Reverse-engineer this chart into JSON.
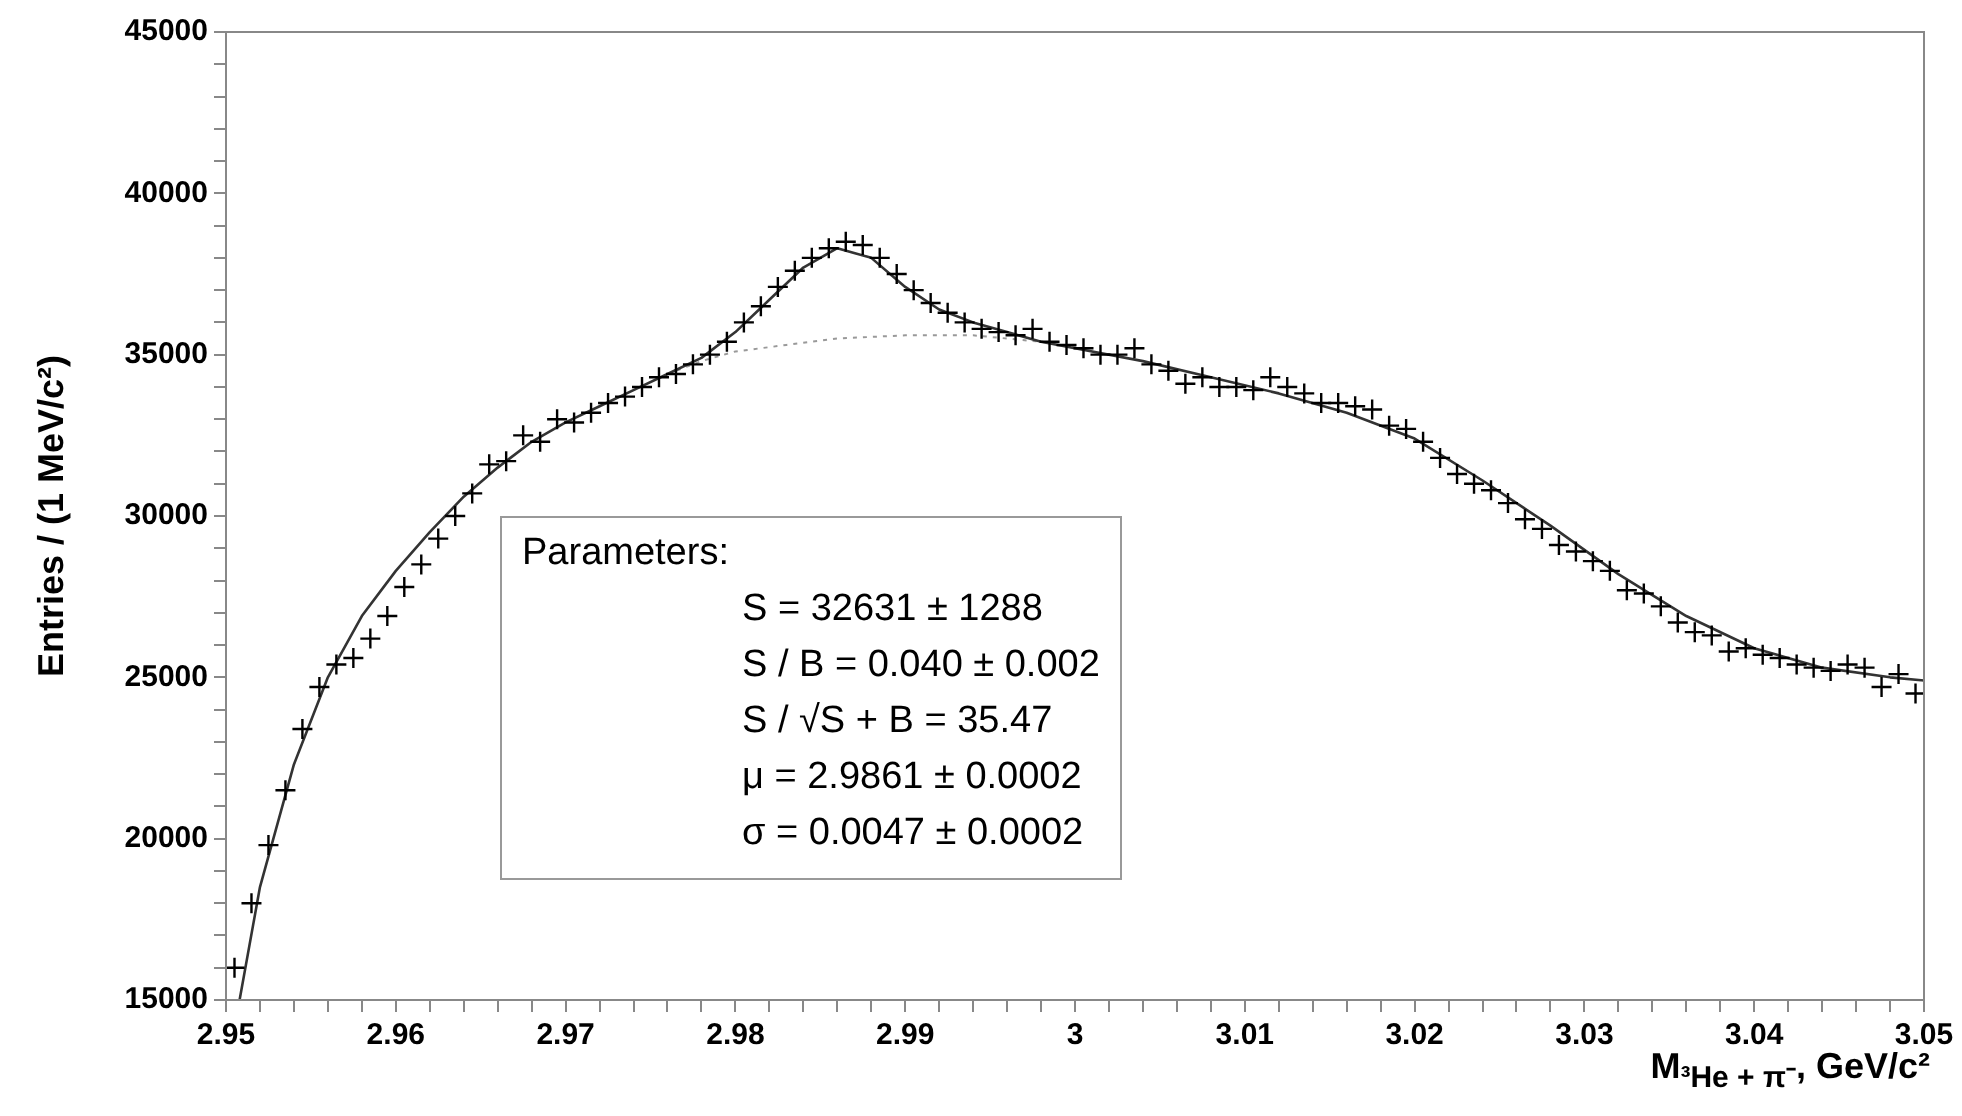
{
  "chart_data": {
    "type": "scatter",
    "xlabel": "M$_{³He + π⁻}$, GeV/c²",
    "ylabel": "Entries / (1 MeV/c²)",
    "xlim": [
      2.95,
      3.05
    ],
    "ylim": [
      15000,
      45000
    ],
    "xticks": [
      2.95,
      {
        "value": 2.952,
        "label": null
      },
      {
        "value": 2.954,
        "label": null
      },
      {
        "value": 2.956,
        "label": null
      },
      {
        "value": 2.958,
        "label": null
      },
      2.96,
      {
        "value": 2.962,
        "label": null
      },
      {
        "value": 2.964,
        "label": null
      },
      {
        "value": 2.966,
        "label": null
      },
      {
        "value": 2.968,
        "label": null
      },
      2.97,
      {
        "value": 2.972,
        "label": null
      },
      {
        "value": 2.974,
        "label": null
      },
      {
        "value": 2.976,
        "label": null
      },
      {
        "value": 2.978,
        "label": null
      },
      2.98,
      {
        "value": 2.982,
        "label": null
      },
      {
        "value": 2.984,
        "label": null
      },
      {
        "value": 2.986,
        "label": null
      },
      {
        "value": 2.988,
        "label": null
      },
      2.99,
      {
        "value": 2.992,
        "label": null
      },
      {
        "value": 2.994,
        "label": null
      },
      {
        "value": 2.996,
        "label": null
      },
      {
        "value": 2.998,
        "label": null
      },
      3,
      {
        "value": 3.002,
        "label": null
      },
      {
        "value": 3.004,
        "label": null
      },
      {
        "value": 3.006,
        "label": null
      },
      {
        "value": 3.008,
        "label": null
      },
      3.01,
      {
        "value": 3.012,
        "label": null
      },
      {
        "value": 3.014,
        "label": null
      },
      {
        "value": 3.016,
        "label": null
      },
      {
        "value": 3.018,
        "label": null
      },
      3.02,
      {
        "value": 3.022,
        "label": null
      },
      {
        "value": 3.024,
        "label": null
      },
      {
        "value": 3.026,
        "label": null
      },
      {
        "value": 3.028,
        "label": null
      },
      3.03,
      {
        "value": 3.032,
        "label": null
      },
      {
        "value": 3.034,
        "label": null
      },
      {
        "value": 3.036,
        "label": null
      },
      {
        "value": 3.038,
        "label": null
      },
      3.04,
      {
        "value": 3.042,
        "label": null
      },
      {
        "value": 3.044,
        "label": null
      },
      {
        "value": 3.046,
        "label": null
      },
      {
        "value": 3.048,
        "label": null
      },
      3.05
    ],
    "yticks": [
      15000,
      {
        "value": 16000,
        "label": null
      },
      {
        "value": 17000,
        "label": null
      },
      {
        "value": 18000,
        "label": null
      },
      {
        "value": 19000,
        "label": null
      },
      20000,
      {
        "value": 21000,
        "label": null
      },
      {
        "value": 22000,
        "label": null
      },
      {
        "value": 23000,
        "label": null
      },
      {
        "value": 24000,
        "label": null
      },
      25000,
      {
        "value": 26000,
        "label": null
      },
      {
        "value": 27000,
        "label": null
      },
      {
        "value": 28000,
        "label": null
      },
      {
        "value": 29000,
        "label": null
      },
      30000,
      {
        "value": 31000,
        "label": null
      },
      {
        "value": 32000,
        "label": null
      },
      {
        "value": 33000,
        "label": null
      },
      {
        "value": 34000,
        "label": null
      },
      35000,
      {
        "value": 36000,
        "label": null
      },
      {
        "value": 37000,
        "label": null
      },
      {
        "value": 38000,
        "label": null
      },
      {
        "value": 39000,
        "label": null
      },
      40000,
      {
        "value": 41000,
        "label": null
      },
      {
        "value": 42000,
        "label": null
      },
      {
        "value": 43000,
        "label": null
      },
      {
        "value": 44000,
        "label": null
      },
      45000
    ],
    "grid": false,
    "legend": false,
    "series": [
      {
        "marker": "cross",
        "color": "#000000",
        "x": [
          2.9505,
          2.9515,
          2.9525,
          2.9535,
          2.9545,
          2.9555,
          2.9565,
          2.9575,
          2.9585,
          2.9595,
          2.9605,
          2.9615,
          2.9625,
          2.9635,
          2.9645,
          2.9655,
          2.9665,
          2.9675,
          2.9685,
          2.9695,
          2.9705,
          2.9715,
          2.9725,
          2.9735,
          2.9745,
          2.9755,
          2.9765,
          2.9775,
          2.9785,
          2.9795,
          2.9805,
          2.9815,
          2.9825,
          2.9835,
          2.9845,
          2.9855,
          2.9865,
          2.9875,
          2.9885,
          2.9895,
          2.9905,
          2.9915,
          2.9925,
          2.9935,
          2.9945,
          2.9955,
          2.9965,
          2.9975,
          2.9985,
          2.9995,
          3.0005,
          3.0015,
          3.0025,
          3.0035,
          3.0045,
          3.0055,
          3.0065,
          3.0075,
          3.0085,
          3.0095,
          3.0105,
          3.0115,
          3.0125,
          3.0135,
          3.0145,
          3.0155,
          3.0165,
          3.0175,
          3.0185,
          3.0195,
          3.0205,
          3.0215,
          3.0225,
          3.0235,
          3.0245,
          3.0255,
          3.0265,
          3.0275,
          3.0285,
          3.0295,
          3.0305,
          3.0315,
          3.0325,
          3.0335,
          3.0345,
          3.0355,
          3.0365,
          3.0375,
          3.0385,
          3.0395,
          3.0405,
          3.0415,
          3.0425,
          3.0435,
          3.0445,
          3.0455,
          3.0465,
          3.0475,
          3.0485,
          3.0495
        ],
        "values": [
          16000,
          18000,
          19800,
          21500,
          23400,
          24700,
          25400,
          25600,
          26200,
          26900,
          27800,
          28500,
          29300,
          30000,
          30700,
          31600,
          31700,
          32500,
          32300,
          33000,
          32900,
          33200,
          33500,
          33700,
          34000,
          34300,
          34400,
          34700,
          35000,
          35400,
          36000,
          36500,
          37100,
          37600,
          38000,
          38300,
          38500,
          38400,
          38000,
          37500,
          37000,
          36600,
          36300,
          36000,
          35800,
          35700,
          35600,
          35800,
          35400,
          35300,
          35200,
          35000,
          35000,
          35200,
          34700,
          34500,
          34100,
          34300,
          34000,
          34000,
          33900,
          34300,
          34000,
          33800,
          33500,
          33500,
          33400,
          33300,
          32800,
          32700,
          32300,
          31800,
          31300,
          31000,
          30800,
          30400,
          29900,
          29600,
          29100,
          28900,
          28600,
          28300,
          27700,
          27600,
          27200,
          26700,
          26400,
          26300,
          25800,
          25900,
          25700,
          25600,
          25400,
          25300,
          25200,
          25400,
          25300,
          24700,
          25100,
          24500
        ]
      },
      {
        "type": "line",
        "color": "#333333",
        "line_style": "solid",
        "x": [
          2.9508,
          2.952,
          2.954,
          2.956,
          2.958,
          2.96,
          2.962,
          2.964,
          2.966,
          2.968,
          2.97,
          2.972,
          2.974,
          2.976,
          2.978,
          2.98,
          2.982,
          2.984,
          2.986,
          2.988,
          2.99,
          2.992,
          2.994,
          2.996,
          2.998,
          3,
          3.004,
          3.008,
          3.012,
          3.016,
          3.02,
          3.024,
          3.028,
          3.032,
          3.036,
          3.04,
          3.044,
          3.048,
          3.05
        ],
        "values": [
          15000,
          18500,
          22300,
          25000,
          26900,
          28300,
          29500,
          30600,
          31500,
          32300,
          32900,
          33400,
          33900,
          34400,
          34900,
          35700,
          36700,
          37700,
          38300,
          38000,
          37100,
          36400,
          36000,
          35700,
          35400,
          35200,
          34800,
          34300,
          33800,
          33200,
          32400,
          31100,
          29700,
          28200,
          26900,
          25900,
          25300,
          25000,
          24900
        ]
      },
      {
        "type": "line",
        "color": "#999999",
        "line_style": "dotted",
        "x": [
          2.976,
          2.978,
          2.98,
          2.983,
          2.986,
          2.99,
          2.994,
          2.998,
          3.001
        ],
        "values": [
          34400,
          34800,
          35100,
          35300,
          35500,
          35600,
          35600,
          35400,
          35150
        ]
      }
    ],
    "annotations": [
      "Parameters:",
      "S = 32631 ± 1288",
      "S / B = 0.040 ± 0.002",
      "S / √S + B = 35.47",
      "μ = 2.9861 ± 0.0002",
      "σ = 0.0047 ± 0.0002"
    ]
  }
}
